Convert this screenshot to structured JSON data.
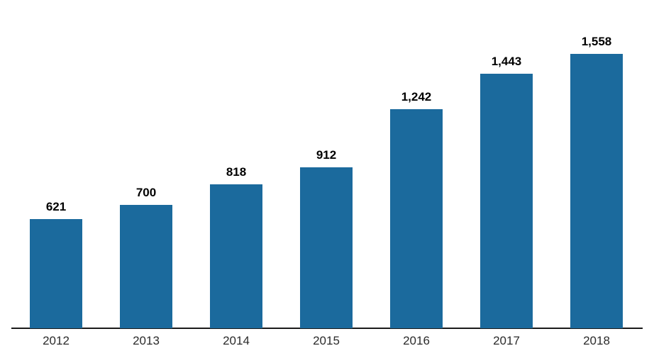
{
  "chart_data": {
    "type": "bar",
    "categories": [
      "2012",
      "2013",
      "2014",
      "2015",
      "2016",
      "2017",
      "2018"
    ],
    "values": [
      621,
      700,
      818,
      912,
      1242,
      1443,
      1558
    ],
    "value_labels": [
      "621",
      "700",
      "818",
      "912",
      "1,242",
      "1,443",
      "1,558"
    ],
    "title": "",
    "xlabel": "",
    "ylabel": "",
    "ylim": [
      0,
      1870
    ],
    "grid": false,
    "legend": false,
    "colors": {
      "bar": "#1b6a9d",
      "axis_line": "#1a1a1a",
      "value_label": "#000000",
      "tick_label": "#2b2b2b",
      "background": "#ffffff"
    }
  }
}
